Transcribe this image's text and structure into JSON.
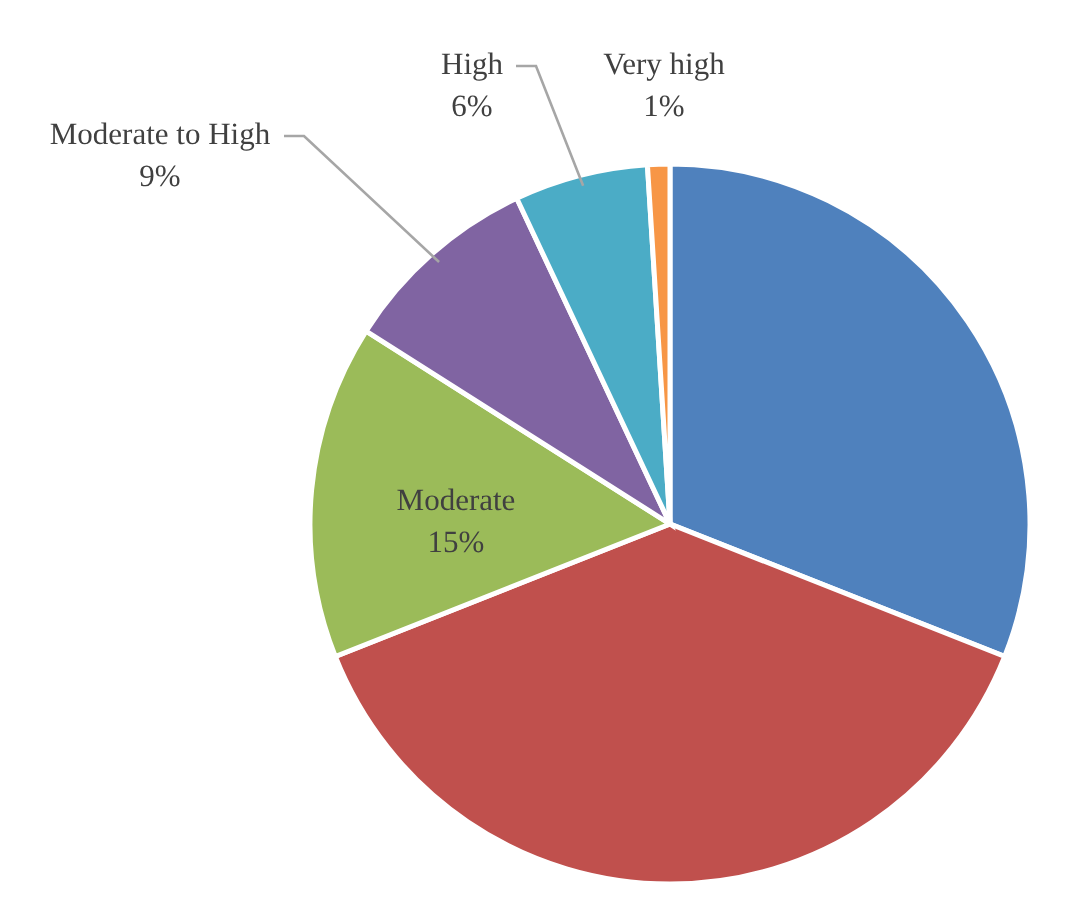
{
  "chart_data": {
    "type": "pie",
    "categories": [
      null,
      null,
      "Moderate",
      "Moderate to High",
      "High",
      "Very high"
    ],
    "values": [
      31,
      38,
      15,
      9,
      6,
      1
    ],
    "colors": [
      "#4f81bd",
      "#c0504d",
      "#9bbb59",
      "#8064a2",
      "#4bacc6",
      "#f79646"
    ],
    "value_labels": [
      null,
      null,
      "15%",
      "9%",
      "6%",
      "1%"
    ]
  }
}
